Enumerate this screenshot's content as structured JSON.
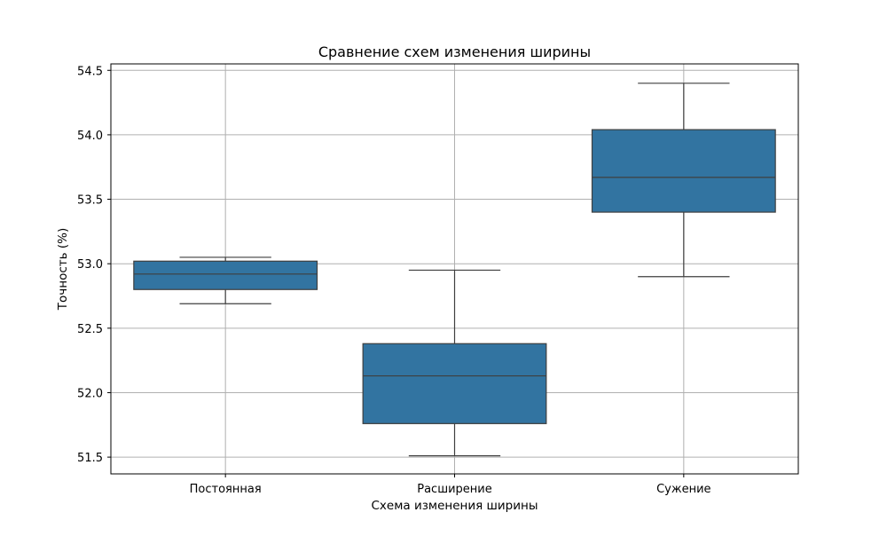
{
  "chart_data": {
    "type": "box",
    "title": "Сравнение схем изменения ширины",
    "xlabel": "Схема изменения ширины",
    "ylabel": "Точность (%)",
    "ylim": [
      51.37,
      54.55
    ],
    "yticks": [
      51.5,
      52.0,
      52.5,
      53.0,
      53.5,
      54.0,
      54.5
    ],
    "grid": true,
    "box_color": "#3274a1",
    "categories": [
      "Постоянная",
      "Расширение",
      "Сужение"
    ],
    "boxes": [
      {
        "category": "Постоянная",
        "whisker_low": 52.69,
        "q1": 52.8,
        "median": 52.92,
        "q3": 53.02,
        "whisker_high": 53.05
      },
      {
        "category": "Расширение",
        "whisker_low": 51.51,
        "q1": 51.76,
        "median": 52.13,
        "q3": 52.38,
        "whisker_high": 52.95
      },
      {
        "category": "Сужение",
        "whisker_low": 52.9,
        "q1": 53.4,
        "median": 53.67,
        "q3": 54.04,
        "whisker_high": 54.4
      }
    ]
  }
}
